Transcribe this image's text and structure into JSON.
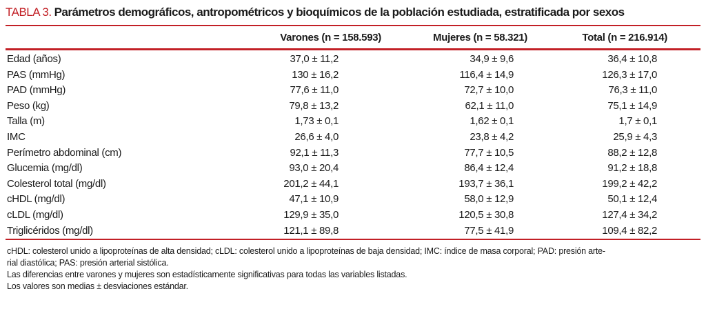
{
  "title": {
    "tag": "TABLA 3.",
    "text": "Parámetros demográficos, antropométricos y bioquímicos de la población estudiada, estratificada por sexos"
  },
  "colors": {
    "accent_red": "#c22026"
  },
  "table": {
    "columns": [
      "Varones (n = 158.593)",
      "Mujeres (n = 58.321)",
      "Total (n = 216.914)"
    ],
    "rows": [
      {
        "label": "Edad (años)",
        "values": [
          "37,0 ± 11,2",
          "34,9 ± 9,6",
          "36,4 ± 10,8"
        ]
      },
      {
        "label": "PAS (mmHg)",
        "values": [
          "130 ± 16,2",
          "116,4 ± 14,9",
          "126,3 ± 17,0"
        ]
      },
      {
        "label": "PAD (mmHg)",
        "values": [
          "77,6 ± 11,0",
          "72,7 ± 10,0",
          "76,3 ± 11,0"
        ]
      },
      {
        "label": "Peso (kg)",
        "values": [
          "79,8 ± 13,2",
          "62,1 ± 11,0",
          "75,1 ± 14,9"
        ]
      },
      {
        "label": "Talla (m)",
        "values": [
          "1,73 ± 0,1",
          "1,62 ± 0,1",
          "1,7 ± 0,1"
        ]
      },
      {
        "label": "IMC",
        "values": [
          "26,6 ± 4,0",
          "23,8 ± 4,2",
          "25,9 ± 4,3"
        ]
      },
      {
        "label": "Perímetro abdominal (cm)",
        "values": [
          "92,1 ± 11,3",
          "77,7 ± 10,5",
          "88,2 ± 12,8"
        ]
      },
      {
        "label": "Glucemia (mg/dl)",
        "values": [
          "93,0 ± 20,4",
          "86,4 ± 12,4",
          "91,2 ± 18,8"
        ]
      },
      {
        "label": "Colesterol total (mg/dl)",
        "values": [
          "201,2 ± 44,1",
          "193,7 ± 36,1",
          "199,2 ± 42,2"
        ]
      },
      {
        "label": "cHDL (mg/dl)",
        "values": [
          "47,1 ± 10,9",
          "58,0 ± 12,9",
          "50,1 ± 12,4"
        ]
      },
      {
        "label": "cLDL (mg/dl)",
        "values": [
          "129,9 ± 35,0",
          "120,5 ± 30,8",
          "127,4 ± 34,2"
        ]
      },
      {
        "label": "Triglicéridos (mg/dl)",
        "values": [
          "121,1 ± 89,8",
          "77,5 ± 41,9",
          "109,4 ± 82,2"
        ]
      }
    ]
  },
  "footnotes": {
    "lines": [
      "cHDL: colesterol unido a lipoproteínas de alta densidad; cLDL: colesterol unido a lipoproteínas de baja densidad; IMC: índice de masa corporal; PAD: presión arte-",
      "rial diastólica; PAS: presión arterial sistólica.",
      "Las diferencias entre varones y mujeres son estadísticamente significativas para todas las variables listadas.",
      "Los valores son medias ± desviaciones estándar."
    ]
  }
}
